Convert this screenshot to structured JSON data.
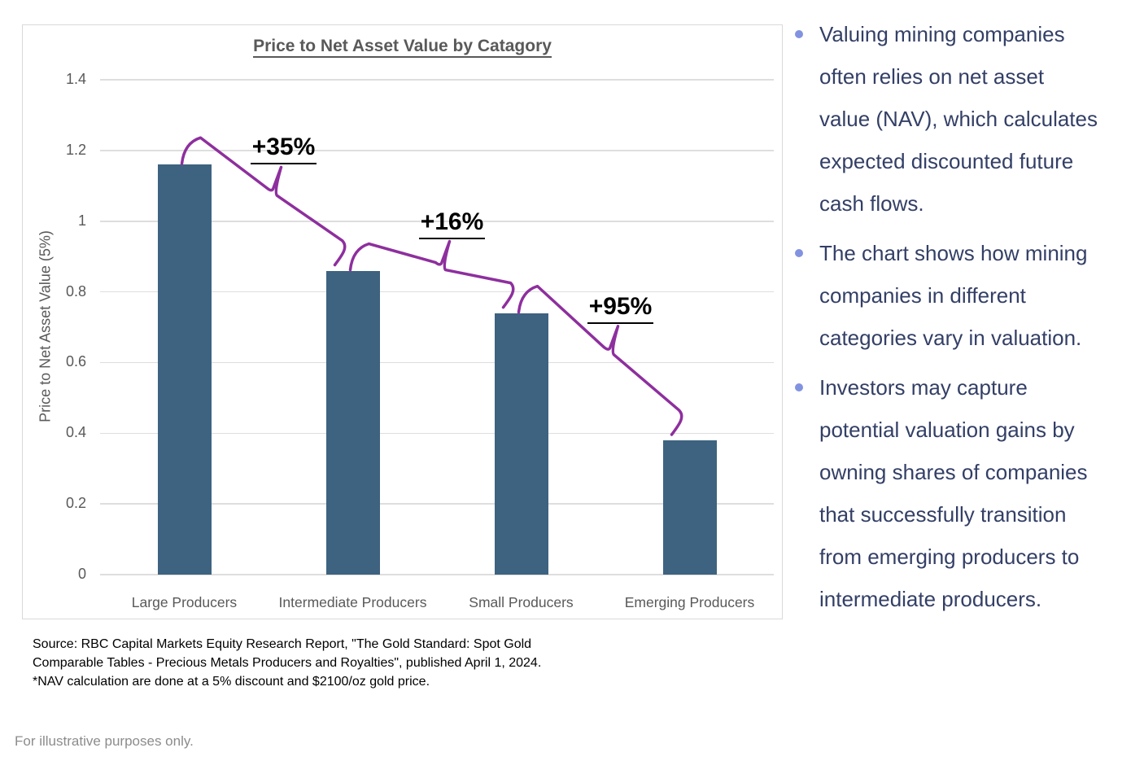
{
  "chart_data": {
    "type": "bar",
    "title": "Price to Net Asset Value by Catagory",
    "ylabel": "Price to Net Asset Value (5%)",
    "xlabel": "",
    "categories": [
      "Large Producers",
      "Intermediate Producers",
      "Small Producers",
      "Emerging Producers"
    ],
    "values": [
      1.16,
      0.86,
      0.74,
      0.38
    ],
    "ylim": [
      0,
      1.4
    ],
    "y_ticks": [
      "0",
      "0.2",
      "0.4",
      "0.6",
      "0.8",
      "1",
      "1.2",
      "1.4"
    ],
    "grid": true,
    "legend": false,
    "annotations": [
      {
        "label": "+35%",
        "from": 0,
        "to": 1
      },
      {
        "label": "+16%",
        "from": 1,
        "to": 2
      },
      {
        "label": "+95%",
        "from": 2,
        "to": 3
      }
    ],
    "colors": {
      "bar": "#3D6380",
      "bracket": "#8E2F9E",
      "grid": "#DEDEDE",
      "axis_text": "#595959",
      "annotation_text": "#000000"
    }
  },
  "source_note": {
    "lines": [
      "Source: RBC Capital Markets Equity Research Report, \"The Gold Standard: Spot Gold",
      "Comparable Tables - Precious Metals Producers and Royalties\", published April 1, 2024.",
      "*NAV calculation are done at a 5% discount and $2100/oz gold price."
    ]
  },
  "bullets": {
    "dot_color": "#8193E0",
    "text_color": "#333F66",
    "items": [
      {
        "lines": [
          "Valuing mining companies",
          "often relies on net asset",
          "value (NAV), which calculates",
          "expected discounted future",
          "cash flows."
        ]
      },
      {
        "lines": [
          "The chart shows how mining",
          "companies in different",
          "categories vary in valuation."
        ]
      },
      {
        "lines": [
          "Investors may capture",
          "potential valuation gains by",
          "owning shares of companies",
          "that successfully transition",
          "from emerging producers to",
          "intermediate producers."
        ]
      }
    ]
  },
  "footer": "For illustrative purposes only."
}
